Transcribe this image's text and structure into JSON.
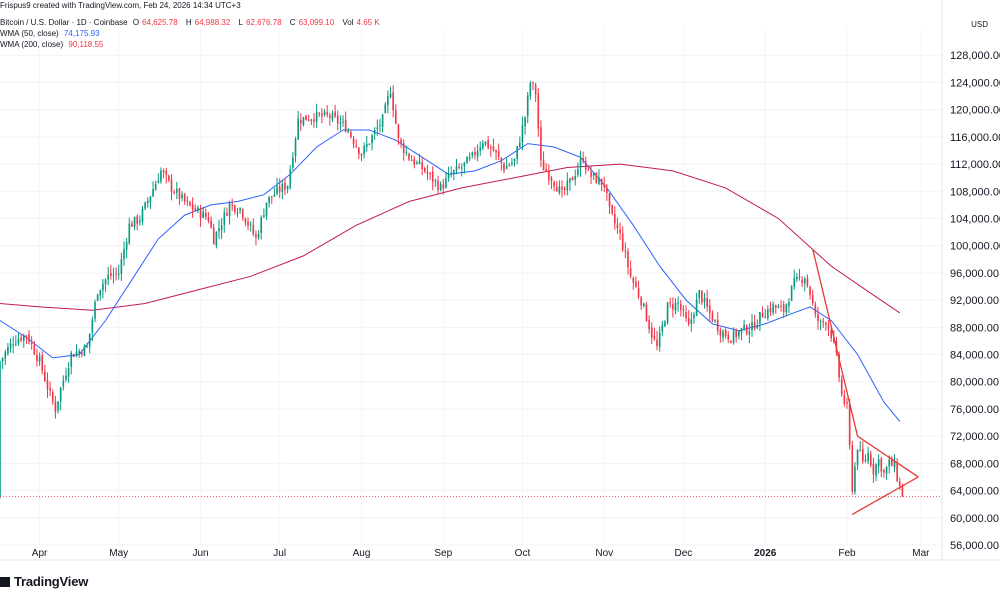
{
  "header": {
    "created_line": "Frispus9 created with TradingView.com, Feb 24, 2026 14:34 UTC+3",
    "symbol_line": "Bitcoin / U.S. Dollar · 1D · Coinbase",
    "ohlc": {
      "o_label": "O",
      "o": "64,625.78",
      "h_label": "H",
      "h": "64,988.32",
      "l_label": "L",
      "l": "62,676.78",
      "c_label": "C",
      "c": "63,099.10",
      "vol_label": "Vol",
      "vol": "4.65 K"
    },
    "wma50_label": "WMA (50, close)",
    "wma50_value": "74,175.93",
    "wma200_label": "WMA (200, close)",
    "wma200_value": "90,118.55"
  },
  "currency": "USD",
  "footer": {
    "brand": "TradingView"
  },
  "colors": {
    "up": "#089981",
    "down": "#f23645",
    "wma50": "#2962ff",
    "wma200": "#c2185b",
    "pattern": "#e53935"
  },
  "chart_data": {
    "type": "candlestick",
    "title": "Bitcoin / U.S. Dollar · 1D · Coinbase",
    "ylim": [
      56000,
      132000
    ],
    "y_ticks": [
      56000,
      60000,
      64000,
      68000,
      72000,
      76000,
      80000,
      84000,
      88000,
      92000,
      96000,
      100000,
      104000,
      108000,
      112000,
      116000,
      120000,
      124000,
      128000
    ],
    "y_tick_labels": [
      "56,000.00",
      "60,000.00",
      "64,000.00",
      "68,000.00",
      "72,000.00",
      "76,000.00",
      "80,000.00",
      "84,000.00",
      "88,000.00",
      "92,000.00",
      "96,000.00",
      "100,000.00",
      "104,000.00",
      "108,000.00",
      "112,000.00",
      "116,000.00",
      "120,000.00",
      "124,000.00",
      "128,000.00"
    ],
    "x_ticks": [
      {
        "day": 0,
        "label": "Apr"
      },
      {
        "day": 30,
        "label": "May"
      },
      {
        "day": 61,
        "label": "Jun"
      },
      {
        "day": 91,
        "label": "Jul"
      },
      {
        "day": 122,
        "label": "Aug"
      },
      {
        "day": 153,
        "label": "Sep"
      },
      {
        "day": 183,
        "label": "Oct"
      },
      {
        "day": 214,
        "label": "Nov"
      },
      {
        "day": 244,
        "label": "Dec"
      },
      {
        "day": 275,
        "label": "2026"
      },
      {
        "day": 306,
        "label": "Feb"
      },
      {
        "day": 334,
        "label": "Mar"
      }
    ],
    "day_range": [
      -15,
      342
    ],
    "last_price": 63099.1,
    "close_keypoints": [
      [
        -15,
        83000
      ],
      [
        -10,
        86000
      ],
      [
        -5,
        87000
      ],
      [
        0,
        83000
      ],
      [
        4,
        78000
      ],
      [
        6,
        76000
      ],
      [
        8,
        79000
      ],
      [
        12,
        84000
      ],
      [
        18,
        85000
      ],
      [
        22,
        93500
      ],
      [
        26,
        95500
      ],
      [
        30,
        96000
      ],
      [
        34,
        103000
      ],
      [
        38,
        104000
      ],
      [
        46,
        111000
      ],
      [
        50,
        108500
      ],
      [
        56,
        106000
      ],
      [
        60,
        105000
      ],
      [
        64,
        104000
      ],
      [
        66,
        101000
      ],
      [
        72,
        106000
      ],
      [
        76,
        105500
      ],
      [
        82,
        101000
      ],
      [
        86,
        106500
      ],
      [
        90,
        108000
      ],
      [
        94,
        109000
      ],
      [
        98,
        118500
      ],
      [
        104,
        119000
      ],
      [
        110,
        119000
      ],
      [
        116,
        117500
      ],
      [
        122,
        113500
      ],
      [
        126,
        116000
      ],
      [
        130,
        118500
      ],
      [
        133,
        123000
      ],
      [
        136,
        115500
      ],
      [
        140,
        113000
      ],
      [
        146,
        111000
      ],
      [
        152,
        108500
      ],
      [
        156,
        110500
      ],
      [
        160,
        111500
      ],
      [
        164,
        113000
      ],
      [
        168,
        115500
      ],
      [
        172,
        114000
      ],
      [
        176,
        111500
      ],
      [
        180,
        112500
      ],
      [
        184,
        119000
      ],
      [
        186,
        124000
      ],
      [
        188,
        122500
      ],
      [
        190,
        112000
      ],
      [
        194,
        110000
      ],
      [
        198,
        107500
      ],
      [
        202,
        110000
      ],
      [
        206,
        113000
      ],
      [
        208,
        110500
      ],
      [
        214,
        109000
      ],
      [
        216,
        105000
      ],
      [
        220,
        101500
      ],
      [
        224,
        95500
      ],
      [
        228,
        92000
      ],
      [
        232,
        87000
      ],
      [
        234,
        85000
      ],
      [
        238,
        91000
      ],
      [
        242,
        91500
      ],
      [
        246,
        88000
      ],
      [
        250,
        93000
      ],
      [
        254,
        90000
      ],
      [
        258,
        87500
      ],
      [
        262,
        86500
      ],
      [
        266,
        87500
      ],
      [
        270,
        88000
      ],
      [
        274,
        90000
      ],
      [
        278,
        91000
      ],
      [
        282,
        90500
      ],
      [
        286,
        94500
      ],
      [
        290,
        95500
      ],
      [
        292,
        93000
      ],
      [
        294,
        89500
      ],
      [
        296,
        88500
      ],
      [
        298,
        89000
      ],
      [
        300,
        87000
      ],
      [
        302,
        83500
      ],
      [
        304,
        78000
      ],
      [
        306,
        76000
      ],
      [
        308,
        64500
      ],
      [
        310,
        70500
      ],
      [
        312,
        68000
      ],
      [
        314,
        69500
      ],
      [
        316,
        67000
      ],
      [
        318,
        68500
      ],
      [
        320,
        66500
      ],
      [
        322,
        68000
      ],
      [
        324,
        67500
      ],
      [
        326,
        64500
      ],
      [
        327,
        63100
      ]
    ],
    "series": [
      {
        "name": "WMA (50, close)",
        "points": [
          [
            -15,
            89000
          ],
          [
            -5,
            86500
          ],
          [
            5,
            83500
          ],
          [
            15,
            84000
          ],
          [
            25,
            89000
          ],
          [
            35,
            95000
          ],
          [
            45,
            101000
          ],
          [
            55,
            104500
          ],
          [
            65,
            106000
          ],
          [
            75,
            106500
          ],
          [
            85,
            107500
          ],
          [
            95,
            110500
          ],
          [
            105,
            114500
          ],
          [
            115,
            117000
          ],
          [
            125,
            117000
          ],
          [
            135,
            115500
          ],
          [
            145,
            113000
          ],
          [
            155,
            110500
          ],
          [
            165,
            111000
          ],
          [
            175,
            112500
          ],
          [
            185,
            115000
          ],
          [
            195,
            114500
          ],
          [
            205,
            113000
          ],
          [
            215,
            108500
          ],
          [
            225,
            103000
          ],
          [
            235,
            97000
          ],
          [
            245,
            92000
          ],
          [
            255,
            88500
          ],
          [
            265,
            87500
          ],
          [
            275,
            88500
          ],
          [
            285,
            90000
          ],
          [
            292,
            91000
          ],
          [
            300,
            89000
          ],
          [
            310,
            84000
          ],
          [
            320,
            77000
          ],
          [
            326,
            74176
          ]
        ]
      },
      {
        "name": "WMA (200, close)",
        "points": [
          [
            -15,
            91500
          ],
          [
            0,
            91000
          ],
          [
            20,
            90500
          ],
          [
            40,
            91500
          ],
          [
            60,
            93500
          ],
          [
            80,
            95500
          ],
          [
            100,
            98500
          ],
          [
            120,
            103000
          ],
          [
            140,
            106500
          ],
          [
            160,
            108500
          ],
          [
            180,
            110000
          ],
          [
            200,
            111500
          ],
          [
            220,
            112000
          ],
          [
            240,
            111000
          ],
          [
            260,
            108500
          ],
          [
            280,
            104000
          ],
          [
            300,
            97000
          ],
          [
            315,
            93000
          ],
          [
            326,
            90119
          ]
        ]
      }
    ],
    "pattern": {
      "type": "descending triangle",
      "lines": [
        [
          [
            293,
            99500
          ],
          [
            310,
            72000
          ]
        ],
        [
          [
            310,
            72000
          ],
          [
            333,
            66000
          ]
        ],
        [
          [
            308,
            60500
          ],
          [
            333,
            66000
          ]
        ]
      ]
    }
  }
}
